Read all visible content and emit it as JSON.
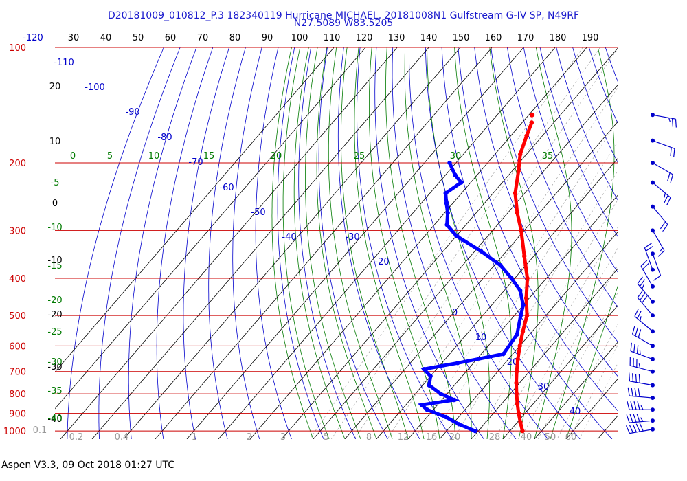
{
  "header": {
    "title": "D20181009_010812_P.3 182340119 Hurricane MICHAEL, 20181008N1 Gulfstream G-IV SP, N49RF",
    "location": "N27.5089 W83.5205"
  },
  "footer": {
    "text": "Aspen V3.3, 09 Oct 2018  01:27 UTC"
  },
  "colors": {
    "isobar": "#cc0000",
    "isotherm": "#000000",
    "dry_adiabat": "#0000cc",
    "moist_adiabat": "#007a00",
    "mixing_ratio": "#999999",
    "temperature": "#ff0000",
    "dewpoint": "#0000ff",
    "wind": "#0000cc"
  },
  "chart_data": {
    "type": "skew-t",
    "pressure_levels": [
      "100",
      "200",
      "300",
      "400",
      "500",
      "600",
      "700",
      "800",
      "900",
      "1000"
    ],
    "top_scale": [
      "-120",
      "30",
      "40",
      "50",
      "60",
      "70",
      "80",
      "90",
      "100",
      "110",
      "120",
      "130",
      "140",
      "150",
      "160",
      "170",
      "180",
      "190"
    ],
    "isotherm_labels": [
      "20",
      "10",
      "0",
      "-10",
      "-20",
      "-30",
      "-40"
    ],
    "dry_adiabat_labels": [
      "-110",
      "-100",
      "-90",
      "-80",
      "-70",
      "-60",
      "-50",
      "-40",
      "-30",
      "-20",
      "0",
      "10",
      "20",
      "30",
      "40"
    ],
    "moist_top_labels": [
      "0",
      "5",
      "10",
      "15",
      "20",
      "25",
      "30",
      "35"
    ],
    "moist_left_labels": [
      "-5",
      "-10",
      "-15",
      "-20",
      "-25",
      "-30",
      "-35",
      "-40"
    ],
    "mixing_ratio_labels": [
      "0.1",
      "0.2",
      "0.4",
      "1",
      "2",
      "3",
      "5",
      "8",
      "12",
      "16",
      "20",
      "28",
      "40",
      "50",
      "60"
    ],
    "temperature_profile": [
      {
        "p": 157,
        "t": -57
      },
      {
        "p": 170,
        "t": -55
      },
      {
        "p": 190,
        "t": -52
      },
      {
        "p": 210,
        "t": -48
      },
      {
        "p": 240,
        "t": -43
      },
      {
        "p": 270,
        "t": -37
      },
      {
        "p": 300,
        "t": -31
      },
      {
        "p": 350,
        "t": -23
      },
      {
        "p": 400,
        "t": -16
      },
      {
        "p": 450,
        "t": -11
      },
      {
        "p": 500,
        "t": -6
      },
      {
        "p": 550,
        "t": -3
      },
      {
        "p": 600,
        "t": 0
      },
      {
        "p": 650,
        "t": 3
      },
      {
        "p": 700,
        "t": 6
      },
      {
        "p": 750,
        "t": 9
      },
      {
        "p": 800,
        "t": 12
      },
      {
        "p": 850,
        "t": 15
      },
      {
        "p": 900,
        "t": 18
      },
      {
        "p": 950,
        "t": 21
      },
      {
        "p": 1000,
        "t": 24
      }
    ],
    "isolated_point": {
      "p": 150,
      "t": -59
    },
    "dewpoint_profile": [
      {
        "p": 200,
        "td": -72
      },
      {
        "p": 215,
        "td": -67
      },
      {
        "p": 225,
        "td": -63
      },
      {
        "p": 240,
        "td": -65
      },
      {
        "p": 255,
        "td": -62
      },
      {
        "p": 270,
        "td": -59
      },
      {
        "p": 290,
        "td": -56
      },
      {
        "p": 310,
        "td": -50
      },
      {
        "p": 340,
        "td": -38
      },
      {
        "p": 370,
        "td": -28
      },
      {
        "p": 400,
        "td": -21
      },
      {
        "p": 430,
        "td": -15
      },
      {
        "p": 470,
        "td": -10
      },
      {
        "p": 500,
        "td": -8
      },
      {
        "p": 560,
        "td": -4
      },
      {
        "p": 630,
        "td": -3
      },
      {
        "p": 665,
        "td": -15
      },
      {
        "p": 690,
        "td": -24
      },
      {
        "p": 720,
        "td": -20
      },
      {
        "p": 760,
        "td": -18
      },
      {
        "p": 800,
        "td": -12
      },
      {
        "p": 830,
        "td": -6
      },
      {
        "p": 855,
        "td": -15
      },
      {
        "p": 880,
        "td": -12
      },
      {
        "p": 920,
        "td": -4
      },
      {
        "p": 960,
        "td": 2
      },
      {
        "p": 1000,
        "td": 9
      }
    ],
    "wind_barbs": [
      {
        "p": 150,
        "speed_kt": 25,
        "dir_deg": 100
      },
      {
        "p": 175,
        "speed_kt": 20,
        "dir_deg": 110
      },
      {
        "p": 200,
        "speed_kt": 20,
        "dir_deg": 120
      },
      {
        "p": 225,
        "speed_kt": 25,
        "dir_deg": 130
      },
      {
        "p": 260,
        "speed_kt": 20,
        "dir_deg": 140
      },
      {
        "p": 300,
        "speed_kt": 15,
        "dir_deg": 150
      },
      {
        "p": 345,
        "speed_kt": 10,
        "dir_deg": 160
      },
      {
        "p": 380,
        "speed_kt": 20,
        "dir_deg": 340
      },
      {
        "p": 420,
        "speed_kt": 20,
        "dir_deg": 330
      },
      {
        "p": 460,
        "speed_kt": 25,
        "dir_deg": 320
      },
      {
        "p": 500,
        "speed_kt": 30,
        "dir_deg": 320
      },
      {
        "p": 550,
        "speed_kt": 25,
        "dir_deg": 310
      },
      {
        "p": 600,
        "speed_kt": 30,
        "dir_deg": 300
      },
      {
        "p": 650,
        "speed_kt": 35,
        "dir_deg": 290
      },
      {
        "p": 700,
        "speed_kt": 35,
        "dir_deg": 285
      },
      {
        "p": 760,
        "speed_kt": 40,
        "dir_deg": 280
      },
      {
        "p": 820,
        "speed_kt": 40,
        "dir_deg": 275
      },
      {
        "p": 880,
        "speed_kt": 45,
        "dir_deg": 270
      },
      {
        "p": 940,
        "speed_kt": 45,
        "dir_deg": 265
      },
      {
        "p": 990,
        "speed_kt": 50,
        "dir_deg": 260
      }
    ]
  }
}
